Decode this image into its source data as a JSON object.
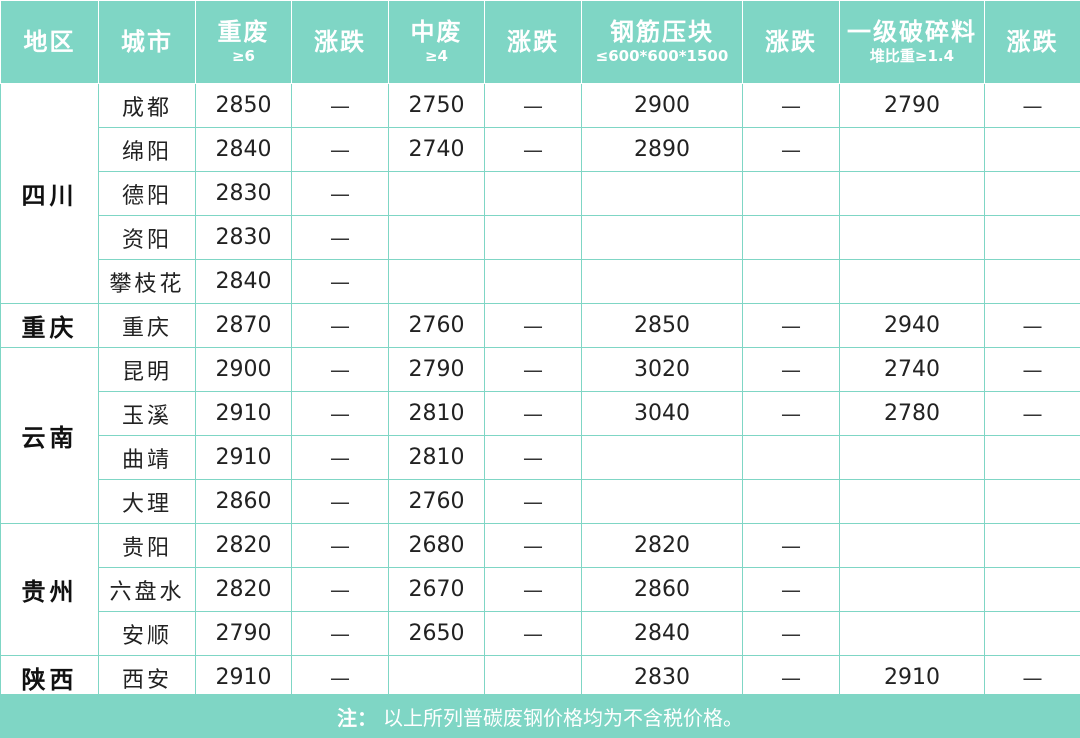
{
  "headers": [
    {
      "main": "地区",
      "sub": ""
    },
    {
      "main": "城市",
      "sub": ""
    },
    {
      "main": "重废",
      "sub": "≥6"
    },
    {
      "main": "涨跌",
      "sub": ""
    },
    {
      "main": "中废",
      "sub": "≥4"
    },
    {
      "main": "涨跌",
      "sub": ""
    },
    {
      "main": "钢筋压块",
      "sub": "≤600*600*1500"
    },
    {
      "main": "涨跌",
      "sub": ""
    },
    {
      "main": "一级破碎料",
      "sub": "堆比重≥1.4"
    },
    {
      "main": "涨跌",
      "sub": ""
    }
  ],
  "regions": [
    {
      "name": "四川",
      "rows": [
        {
          "city": "成都",
          "c1": "2850",
          "d1": "—",
          "c2": "2750",
          "d2": "—",
          "c3": "2900",
          "d3": "—",
          "c4": "2790",
          "d4": "—"
        },
        {
          "city": "绵阳",
          "c1": "2840",
          "d1": "—",
          "c2": "2740",
          "d2": "—",
          "c3": "2890",
          "d3": "—",
          "c4": "",
          "d4": ""
        },
        {
          "city": "德阳",
          "c1": "2830",
          "d1": "—",
          "c2": "",
          "d2": "",
          "c3": "",
          "d3": "",
          "c4": "",
          "d4": ""
        },
        {
          "city": "资阳",
          "c1": "2830",
          "d1": "—",
          "c2": "",
          "d2": "",
          "c3": "",
          "d3": "",
          "c4": "",
          "d4": ""
        },
        {
          "city": "攀枝花",
          "c1": "2840",
          "d1": "—",
          "c2": "",
          "d2": "",
          "c3": "",
          "d3": "",
          "c4": "",
          "d4": ""
        }
      ]
    },
    {
      "name": "重庆",
      "rows": [
        {
          "city": "重庆",
          "c1": "2870",
          "d1": "—",
          "c2": "2760",
          "d2": "—",
          "c3": "2850",
          "d3": "—",
          "c4": "2940",
          "d4": "—"
        }
      ]
    },
    {
      "name": "云南",
      "rows": [
        {
          "city": "昆明",
          "c1": "2900",
          "d1": "—",
          "c2": "2790",
          "d2": "—",
          "c3": "3020",
          "d3": "—",
          "c4": "2740",
          "d4": "—"
        },
        {
          "city": "玉溪",
          "c1": "2910",
          "d1": "—",
          "c2": "2810",
          "d2": "—",
          "c3": "3040",
          "d3": "—",
          "c4": "2780",
          "d4": "—"
        },
        {
          "city": "曲靖",
          "c1": "2910",
          "d1": "—",
          "c2": "2810",
          "d2": "—",
          "c3": "",
          "d3": "",
          "c4": "",
          "d4": ""
        },
        {
          "city": "大理",
          "c1": "2860",
          "d1": "—",
          "c2": "2760",
          "d2": "—",
          "c3": "",
          "d3": "",
          "c4": "",
          "d4": ""
        }
      ]
    },
    {
      "name": "贵州",
      "rows": [
        {
          "city": "贵阳",
          "c1": "2820",
          "d1": "—",
          "c2": "2680",
          "d2": "—",
          "c3": "2820",
          "d3": "—",
          "c4": "",
          "d4": ""
        },
        {
          "city": "六盘水",
          "c1": "2820",
          "d1": "—",
          "c2": "2670",
          "d2": "—",
          "c3": "2860",
          "d3": "—",
          "c4": "",
          "d4": ""
        },
        {
          "city": "安顺",
          "c1": "2790",
          "d1": "—",
          "c2": "2650",
          "d2": "—",
          "c3": "2840",
          "d3": "—",
          "c4": "",
          "d4": ""
        }
      ]
    },
    {
      "name": "陕西",
      "rows": [
        {
          "city": "西安",
          "c1": "2910",
          "d1": "—",
          "c2": "",
          "d2": "",
          "c3": "2830",
          "d3": "—",
          "c4": "2910",
          "d4": "—"
        }
      ]
    }
  ],
  "footer": {
    "label": "注：",
    "text": "以上所列普碳废钢价格均为不含税价格。"
  },
  "colors": {
    "header_bg": "#7fd6c5",
    "header_text": "#ffffff",
    "grid": "#7fd6c5"
  }
}
